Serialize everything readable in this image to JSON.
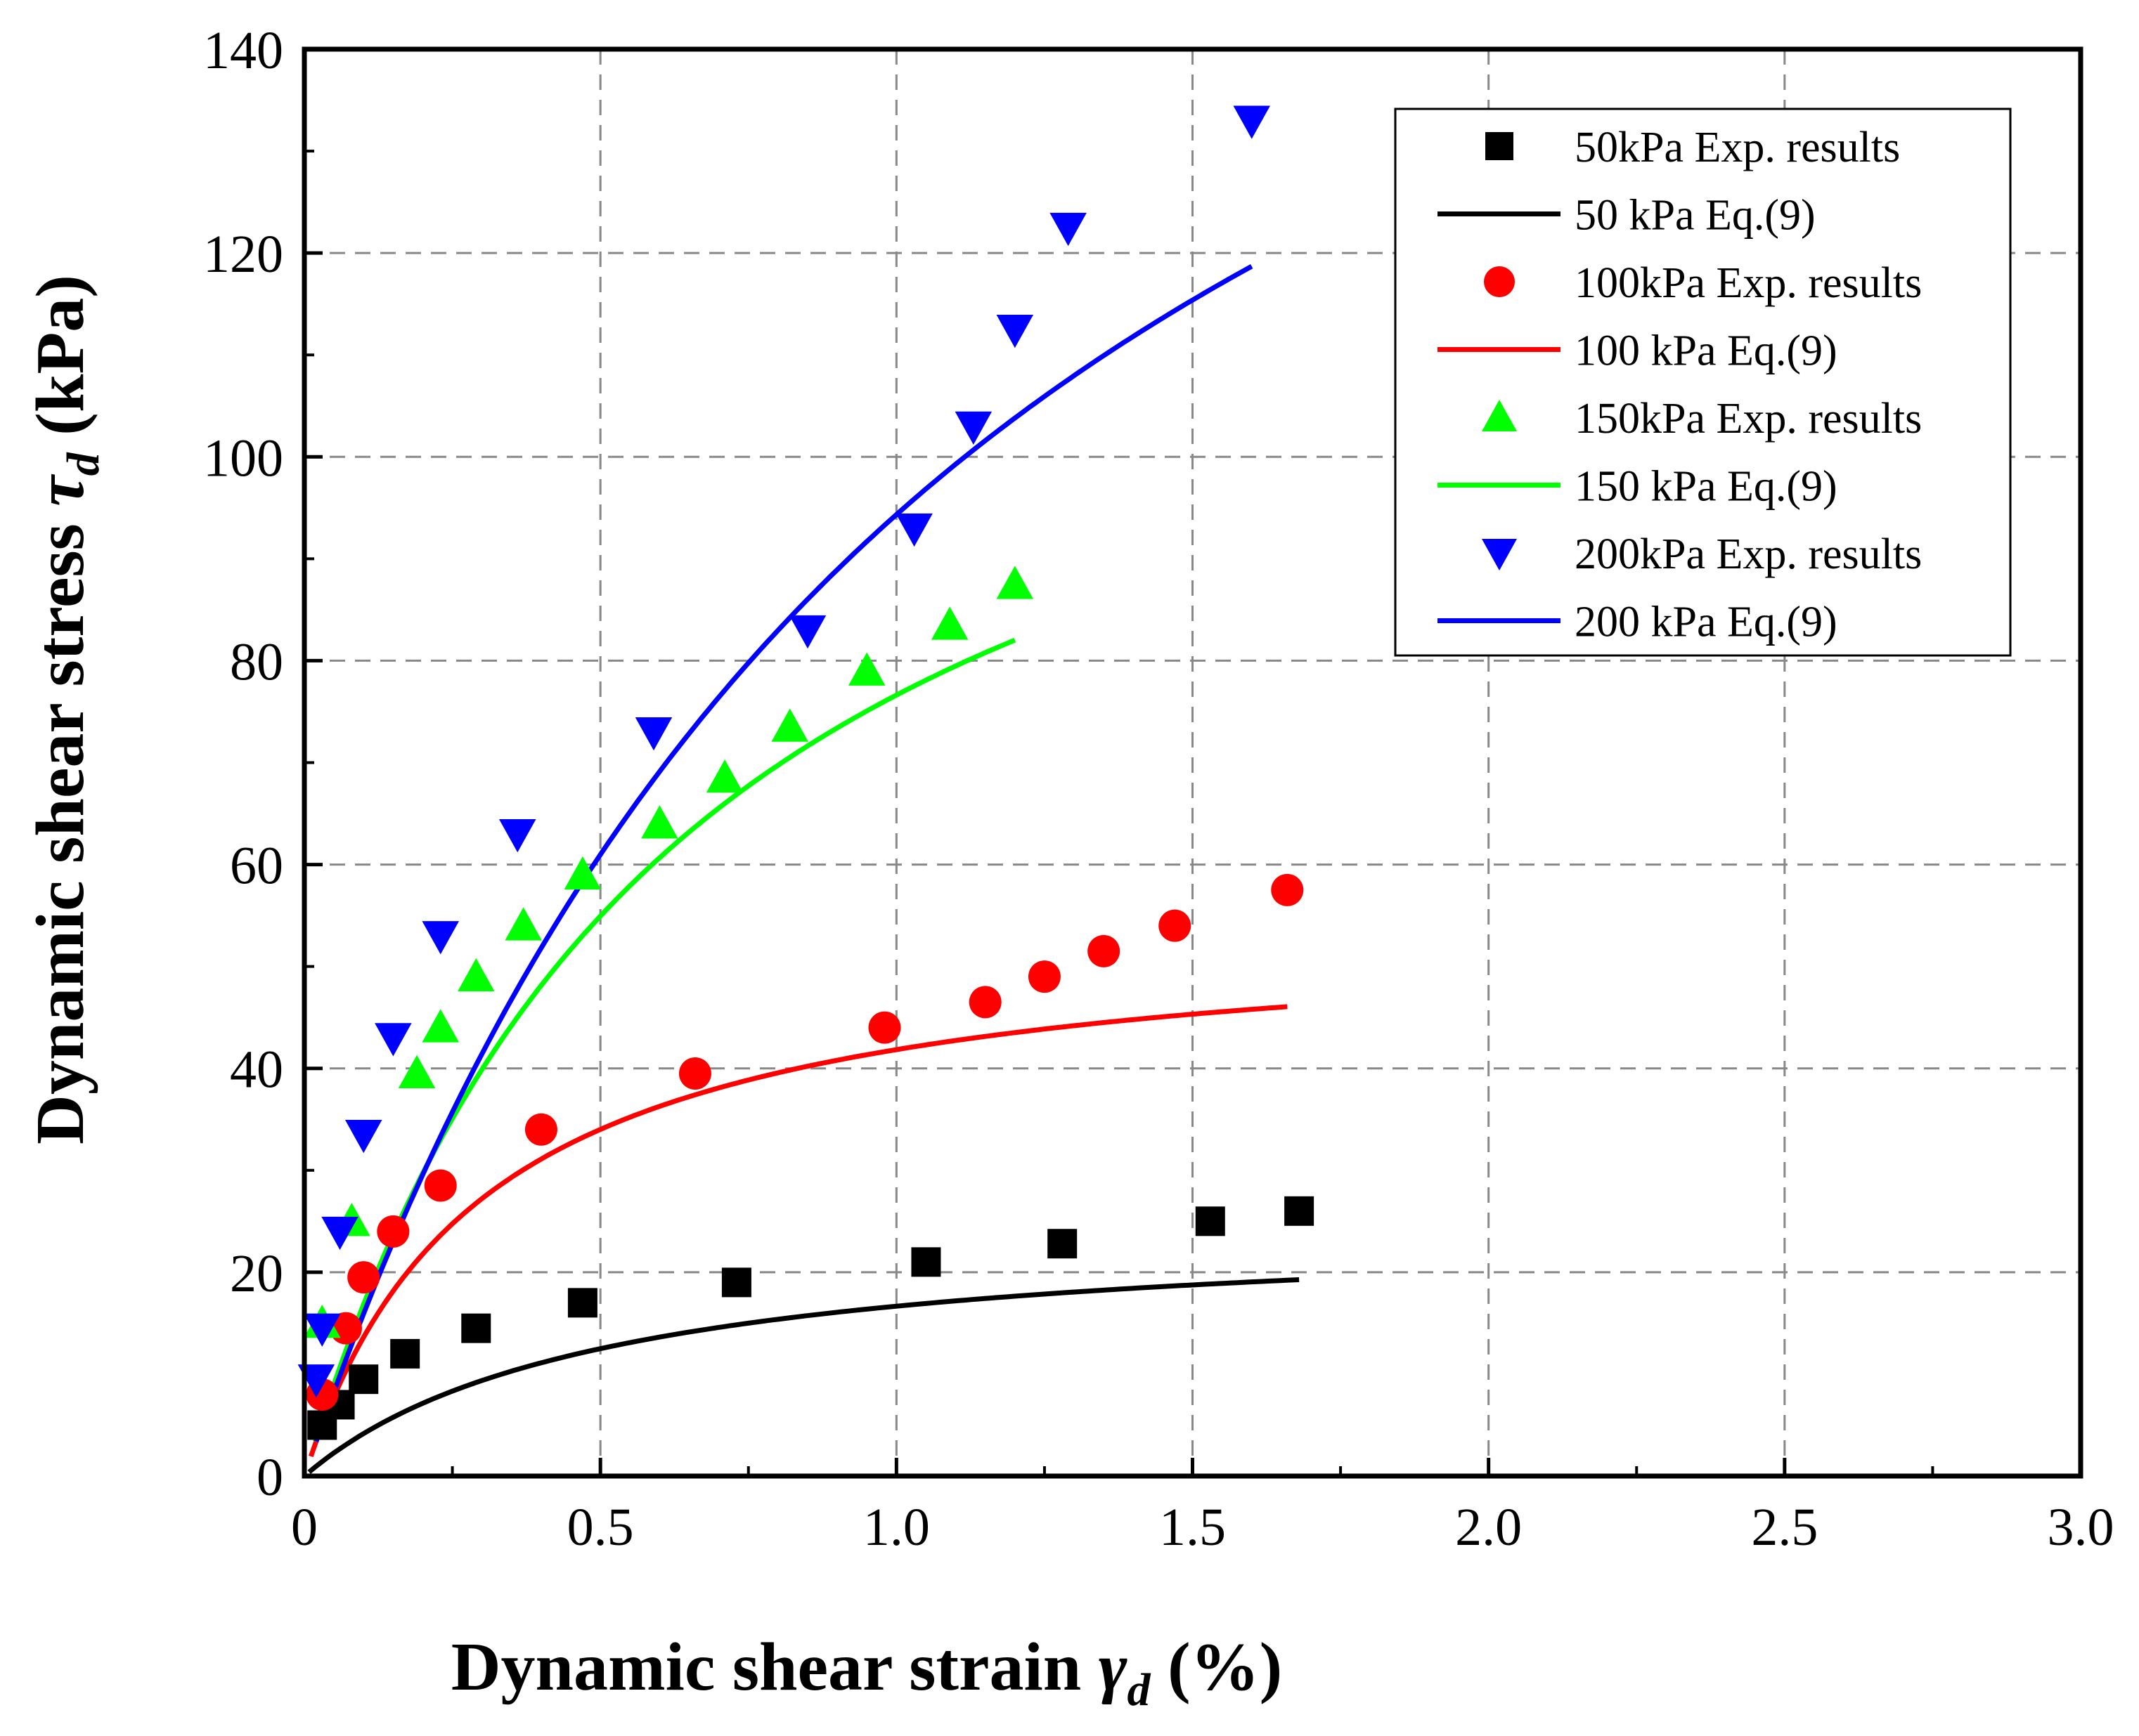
{
  "chart_data": {
    "type": "scatter",
    "title": "",
    "xlabel_main": "Dynamic shear strain ",
    "xlabel_symbol": "γ",
    "xlabel_sub": "d",
    "xlabel_unit": " (%)",
    "ylabel_main": "Dynamic shear stress ",
    "ylabel_symbol": "τ",
    "ylabel_sub": "d",
    "ylabel_unit": " (kPa)",
    "xlim": [
      0,
      3.0
    ],
    "ylim": [
      0,
      140
    ],
    "xticks": [
      0,
      0.5,
      1.0,
      1.5,
      2.0,
      2.5,
      3.0
    ],
    "xtick_labels": [
      "0",
      "0.5",
      "1.0",
      "1.5",
      "2.0",
      "2.5",
      "3.0"
    ],
    "yticks": [
      0,
      20,
      40,
      60,
      80,
      100,
      120,
      140
    ],
    "ytick_labels": [
      "0",
      "20",
      "40",
      "60",
      "80",
      "100",
      "120",
      "140"
    ],
    "grid": true,
    "legend_position": "top-right",
    "legend": [
      "50kPa Exp. results",
      "50 kPa Eq.(9)",
      "100kPa Exp. results",
      "100 kPa Eq.(9)",
      "150kPa Exp. results",
      "150 kPa Eq.(9)",
      "200kPa Exp. results",
      "200 kPa Eq.(9)"
    ],
    "series": [
      {
        "name": "50kPa Exp. results",
        "kind": "points",
        "marker": "square",
        "color": "#000000",
        "x": [
          0.03,
          0.06,
          0.1,
          0.17,
          0.29,
          0.47,
          0.73,
          1.05,
          1.28,
          1.53,
          1.68
        ],
        "y": [
          5,
          7,
          9.5,
          12,
          14.5,
          17,
          19,
          21,
          22.8,
          25,
          26
        ]
      },
      {
        "name": "50 kPa Eq.(9)",
        "kind": "line",
        "color": "#000000",
        "model": {
          "a": 0.02,
          "b": 0.04,
          "x0": 0.008,
          "x1": 1.68
        }
      },
      {
        "name": "100kPa Exp. results",
        "kind": "points",
        "marker": "circle",
        "color": "#ff0000",
        "x": [
          0.03,
          0.07,
          0.1,
          0.15,
          0.23,
          0.4,
          0.66,
          0.98,
          1.15,
          1.25,
          1.35,
          1.47,
          1.66
        ],
        "y": [
          8,
          14.5,
          19.5,
          24,
          28.5,
          34,
          39.5,
          44,
          46.5,
          49,
          51.5,
          54,
          57.5
        ]
      },
      {
        "name": "100 kPa Eq.(9)",
        "kind": "line",
        "color": "#ff0000",
        "model": {
          "a": 0.0055,
          "b": 0.0184,
          "x0": 0.011,
          "x1": 1.66
        }
      },
      {
        "name": "150kPa Exp. results",
        "kind": "points",
        "marker": "triangle-up",
        "color": "#00ff00",
        "x": [
          0.03,
          0.08,
          0.19,
          0.23,
          0.29,
          0.37,
          0.47,
          0.6,
          0.71,
          0.82,
          0.95,
          1.09,
          1.2
        ],
        "y": [
          15,
          25,
          39.5,
          44,
          49,
          54,
          59,
          64,
          68.5,
          73.5,
          79,
          83.5,
          87.5
        ]
      },
      {
        "name": "150 kPa Eq.(9)",
        "kind": "line",
        "color": "#00ff00",
        "model": {
          "a": 0.00515,
          "b": 0.0079,
          "x0": 0.018,
          "x1": 1.2
        }
      },
      {
        "name": "200kPa Exp. results",
        "kind": "points",
        "marker": "triangle-down",
        "color": "#0000ff",
        "x": [
          0.02,
          0.03,
          0.06,
          0.1,
          0.15,
          0.23,
          0.36,
          0.59,
          0.85,
          1.03,
          1.13,
          1.2,
          1.29,
          1.6
        ],
        "y": [
          9.5,
          14.5,
          24,
          33.5,
          43,
          53,
          63,
          73,
          83,
          93,
          103,
          112.5,
          122.5,
          133
        ]
      },
      {
        "name": "200 kPa Eq.(9)",
        "kind": "line",
        "color": "#0000ff",
        "model": {
          "a": 0.0058,
          "b": 0.0048,
          "x0": 0.02,
          "x1": 1.6
        }
      }
    ]
  }
}
